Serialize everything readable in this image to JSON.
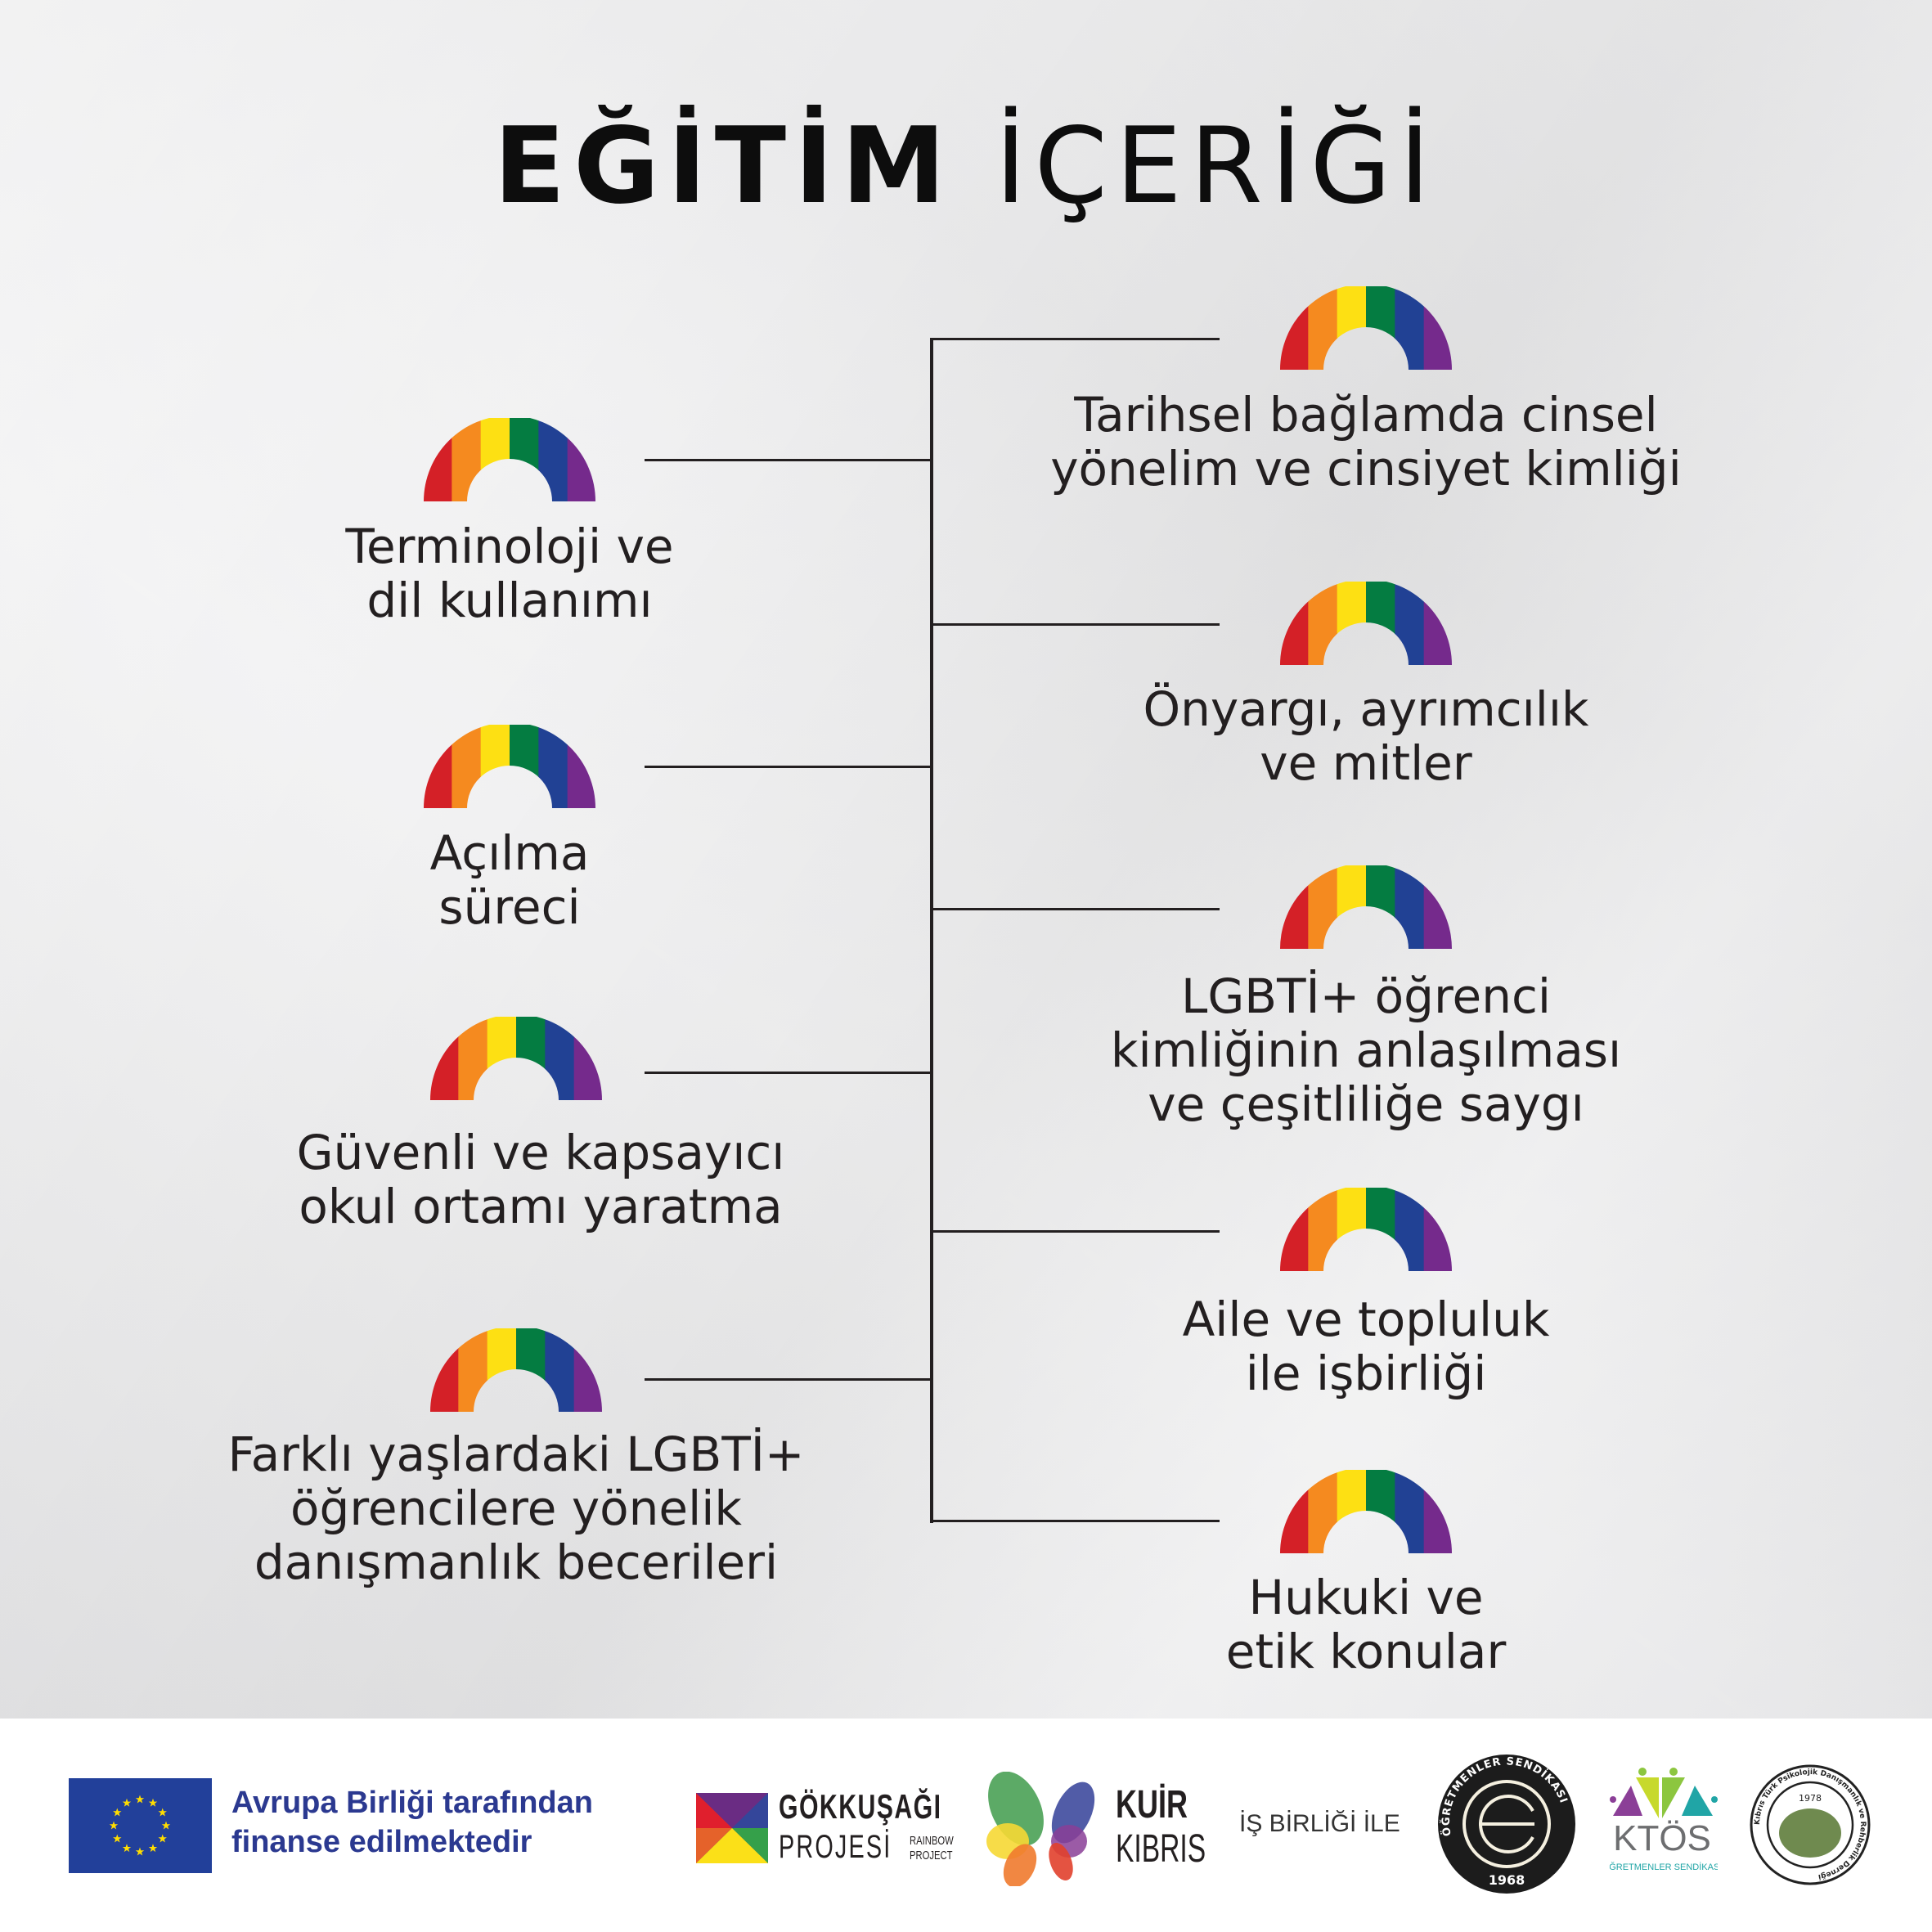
{
  "title": {
    "bold": "EĞİTİM",
    "regular": "İÇERİĞİ"
  },
  "rainbow_colors": [
    "#d42027",
    "#f58a1f",
    "#fde013",
    "#047c41",
    "#214194",
    "#752a8c"
  ],
  "topics_left": [
    {
      "lines": [
        "Terminoloji ve",
        "dil kullanımı"
      ]
    },
    {
      "lines": [
        "Açılma",
        "süreci"
      ]
    },
    {
      "lines": [
        "Güvenli ve kapsayıcı",
        "okul ortamı yaratma"
      ]
    },
    {
      "lines": [
        "Farklı yaşlardaki LGBTİ+",
        "öğrencilere yönelik",
        "danışmanlık becerileri"
      ]
    }
  ],
  "topics_right": [
    {
      "lines": [
        "Tarihsel bağlamda cinsel",
        "yönelim ve cinsiyet kimliği"
      ]
    },
    {
      "lines": [
        "Önyargı, ayrımcılık",
        "ve mitler"
      ]
    },
    {
      "lines": [
        "LGBTİ+ öğrenci",
        "kimliğinin anlaşılması",
        "ve çeşitliliğe saygı"
      ]
    },
    {
      "lines": [
        "Aile ve topluluk",
        "ile işbirliği"
      ]
    },
    {
      "lines": [
        "Hukuki ve",
        "etik konular"
      ]
    }
  ],
  "footer": {
    "eu_text": [
      "Avrupa Birliği tarafından",
      "finanse edilmektedir"
    ],
    "eu_blue": "#22409a",
    "eu_text_color": "#2b3990",
    "gokkusagi": {
      "line1": "GÖKKUŞAĞI",
      "line2": "PROJESİ",
      "sub": [
        "RAINBOW",
        "PROJECT"
      ]
    },
    "kuir": {
      "line1": "KUİR",
      "line2": "KIBRIS"
    },
    "collab": "İŞ BİRLİĞİ İLE",
    "ogretmenler": {
      "ring": "ÖĞRETMENLER SENDİKASI",
      "year": "1968"
    },
    "ktos": {
      "name": "KTÖS",
      "sub": "ÖĞRETMENLER SENDİKASI"
    },
    "pdr": {
      "ring": "Kıbrıs Türk Psikolojik Danışmanlık ve Rehberlik Derneği",
      "year": "1978"
    }
  }
}
